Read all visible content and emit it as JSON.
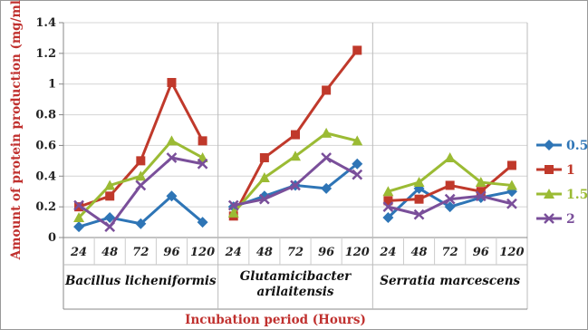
{
  "chart_data": {
    "type": "line",
    "xlabel": "Incubation period (Hours)",
    "ylabel": "Amount of protein production (mg/ml)",
    "ylim": [
      0,
      1.4
    ],
    "yticks": [
      "0",
      "0.2",
      "0.4",
      "0.6",
      "0.8",
      "1",
      "1.2",
      "1.4"
    ],
    "grid": "horizontal",
    "legend_position": "right",
    "groups": [
      {
        "label_lines": [
          "Bacillus licheniformis"
        ],
        "x": [
          "24",
          "48",
          "72",
          "96",
          "120"
        ]
      },
      {
        "label_lines": [
          "Glutamicibacter",
          "arilaitensis"
        ],
        "x": [
          "24",
          "48",
          "72",
          "96",
          "120"
        ]
      },
      {
        "label_lines": [
          "Serratia marcescens"
        ],
        "x": [
          "24",
          "48",
          "72",
          "96",
          "120"
        ]
      }
    ],
    "series": [
      {
        "name": "0.5",
        "color": "#2e75b6",
        "marker": "diamond",
        "values": [
          [
            0.07,
            0.13,
            0.09,
            0.27,
            0.1
          ],
          [
            0.2,
            0.27,
            0.34,
            0.32,
            0.48
          ],
          [
            0.13,
            0.32,
            0.2,
            0.26,
            0.3
          ]
        ]
      },
      {
        "name": "1",
        "color": "#c0392b",
        "marker": "square",
        "values": [
          [
            0.2,
            0.27,
            0.5,
            1.01,
            0.63
          ],
          [
            0.14,
            0.52,
            0.67,
            0.96,
            1.22
          ],
          [
            0.24,
            0.25,
            0.34,
            0.3,
            0.47
          ]
        ]
      },
      {
        "name": "1.5",
        "color": "#9bbb34",
        "marker": "triangle",
        "values": [
          [
            0.13,
            0.34,
            0.4,
            0.63,
            0.52
          ],
          [
            0.16,
            0.39,
            0.53,
            0.68,
            0.63
          ],
          [
            0.3,
            0.36,
            0.52,
            0.36,
            0.34
          ]
        ]
      },
      {
        "name": "2",
        "color": "#7a4f9a",
        "marker": "x",
        "values": [
          [
            0.21,
            0.07,
            0.34,
            0.52,
            0.48
          ],
          [
            0.21,
            0.25,
            0.34,
            0.52,
            0.41
          ],
          [
            0.2,
            0.15,
            0.25,
            0.27,
            0.22
          ]
        ]
      }
    ]
  }
}
